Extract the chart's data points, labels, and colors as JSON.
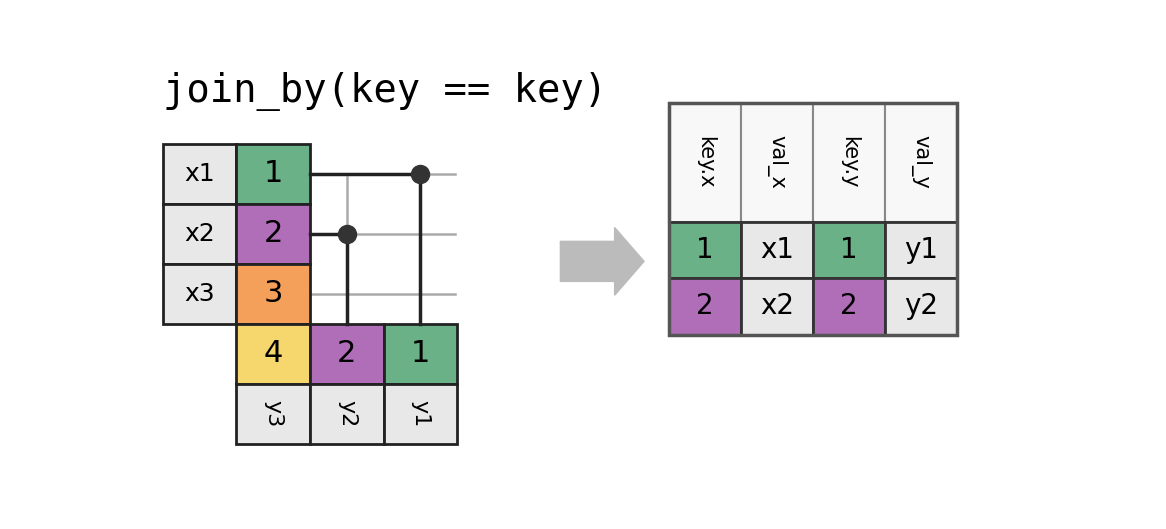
{
  "title": "join_by(key == key)",
  "title_fontsize": 28,
  "title_font": "monospace",
  "bg_color": "#ffffff",
  "cell_light": "#e8e8e8",
  "cell_white": "#f8f8f8",
  "color_green": "#6ab187",
  "color_purple": "#b06db8",
  "color_orange": "#f5a05a",
  "color_yellow": "#f5d76e",
  "border_color": "#222222",
  "line_color": "#222222",
  "dot_color": "#333333",
  "connector_line_color": "#aaaaaa",
  "arrow_color": "#bbbbbb",
  "x_table": {
    "rows": [
      {
        "val": "x1",
        "key": "1",
        "key_color": "green"
      },
      {
        "val": "x2",
        "key": "2",
        "key_color": "purple"
      },
      {
        "val": "x3",
        "key": "3",
        "key_color": "orange"
      }
    ]
  },
  "y_table": {
    "cols": [
      {
        "key": "4",
        "key_color": "yellow"
      },
      {
        "key": "2",
        "key_color": "purple"
      },
      {
        "key": "1",
        "key_color": "green"
      }
    ],
    "rows": [
      "y3",
      "y2",
      "y1"
    ]
  },
  "result_table": {
    "headers": [
      "key.x",
      "val_x",
      "key.y",
      "val_y"
    ],
    "rows": [
      [
        "1",
        "x1",
        "1",
        "y1"
      ],
      [
        "2",
        "x2",
        "2",
        "y2"
      ]
    ],
    "row_colors": [
      [
        "green",
        "light",
        "green",
        "light"
      ],
      [
        "purple",
        "light",
        "purple",
        "light"
      ]
    ]
  }
}
